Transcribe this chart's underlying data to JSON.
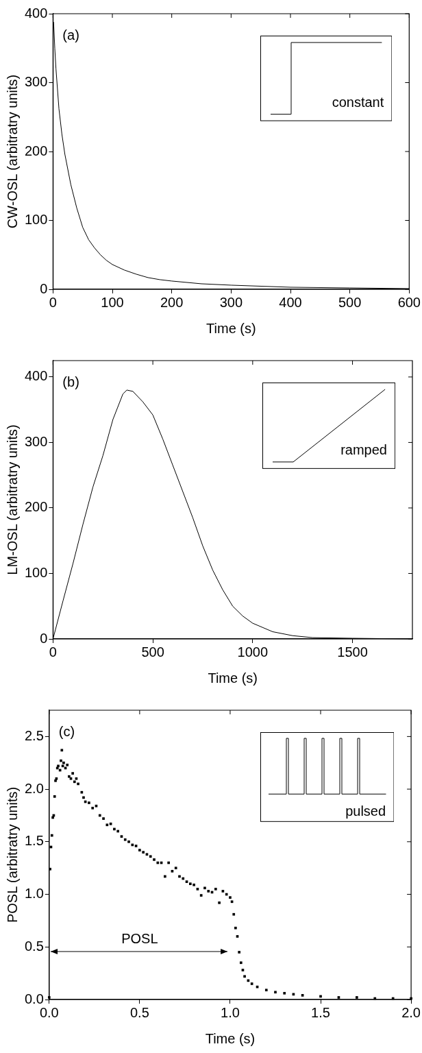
{
  "chart_data": [
    {
      "type": "line",
      "xlabel": "Time (s)",
      "ylabel": "CW-OSL (arbitratry units)",
      "annotations": [
        "(a)",
        "constant"
      ],
      "xlim": [
        0,
        600
      ],
      "xticks": [
        0,
        100,
        200,
        300,
        400,
        500,
        600
      ],
      "ylim": [
        0,
        400
      ],
      "yticks": [
        0,
        100,
        200,
        300,
        400
      ],
      "grid": false,
      "legend": false,
      "marker": "none",
      "color": "#000000",
      "x": [
        1,
        3,
        5,
        10,
        15,
        20,
        30,
        40,
        50,
        60,
        70,
        80,
        90,
        100,
        120,
        140,
        160,
        180,
        200,
        250,
        300,
        400,
        500,
        600
      ],
      "values": [
        388,
        350,
        320,
        262,
        225,
        196,
        152,
        118,
        90,
        72,
        60,
        50,
        42,
        36,
        28,
        22,
        17,
        14,
        12,
        8,
        6,
        3,
        2,
        1
      ]
    },
    {
      "type": "line",
      "xlabel": "Time (s)",
      "ylabel": "LM-OSL (arbitratry units)",
      "annotations": [
        "(b)",
        "ramped"
      ],
      "xlim": [
        0,
        1800
      ],
      "xticks": [
        0,
        500,
        1000,
        1500
      ],
      "ylim": [
        0,
        425
      ],
      "yticks": [
        0,
        100,
        200,
        300,
        400
      ],
      "grid": false,
      "legend": false,
      "marker": "none",
      "color": "#000000",
      "x": [
        0,
        50,
        100,
        150,
        200,
        250,
        300,
        350,
        370,
        400,
        450,
        500,
        550,
        600,
        650,
        700,
        750,
        800,
        850,
        900,
        950,
        1000,
        1100,
        1200,
        1300,
        1500,
        1800
      ],
      "values": [
        0,
        58,
        115,
        175,
        232,
        280,
        335,
        374,
        380,
        378,
        362,
        342,
        305,
        265,
        225,
        185,
        142,
        105,
        75,
        50,
        35,
        24,
        11,
        5,
        2,
        1,
        0
      ]
    },
    {
      "type": "scatter",
      "xlabel": "Time (s)",
      "ylabel": "POSL (arbitratry units)",
      "annotations": [
        "(c)",
        "pulsed",
        "POSL"
      ],
      "xlim": [
        0,
        2
      ],
      "xticks": [
        {
          "value": 0,
          "label": "0.0"
        },
        0.5,
        {
          "value": 1,
          "label": "1.0"
        },
        1.5,
        {
          "value": 2,
          "label": "2.0"
        }
      ],
      "ylim": [
        0,
        2.75
      ],
      "yticks": [
        {
          "value": 0,
          "label": "0.0"
        },
        0.5,
        {
          "value": 1,
          "label": "1.0"
        },
        1.5,
        {
          "value": 2,
          "label": "2.0"
        },
        2.5
      ],
      "grid": false,
      "legend": false,
      "marker": "square",
      "color": "#000000",
      "x": [
        0,
        0.005,
        0.01,
        0.015,
        0.02,
        0.025,
        0.03,
        0.035,
        0.04,
        0.045,
        0.05,
        0.06,
        0.065,
        0.07,
        0.075,
        0.08,
        0.09,
        0.1,
        0.11,
        0.12,
        0.13,
        0.14,
        0.15,
        0.16,
        0.18,
        0.19,
        0.2,
        0.22,
        0.24,
        0.26,
        0.28,
        0.3,
        0.32,
        0.34,
        0.36,
        0.38,
        0.4,
        0.42,
        0.44,
        0.46,
        0.48,
        0.5,
        0.52,
        0.54,
        0.56,
        0.58,
        0.6,
        0.62,
        0.64,
        0.66,
        0.68,
        0.7,
        0.72,
        0.74,
        0.76,
        0.78,
        0.8,
        0.82,
        0.84,
        0.86,
        0.88,
        0.9,
        0.92,
        0.94,
        0.96,
        0.98,
        1.0,
        1.01,
        1.02,
        1.03,
        1.04,
        1.05,
        1.06,
        1.07,
        1.08,
        1.1,
        1.12,
        1.15,
        1.2,
        1.25,
        1.3,
        1.35,
        1.4,
        1.5,
        1.6,
        1.7,
        1.8,
        1.9,
        2.0
      ],
      "values": [
        0.02,
        1.24,
        1.45,
        1.56,
        1.73,
        1.75,
        1.93,
        2.08,
        2.1,
        2.2,
        2.22,
        2.18,
        2.27,
        2.37,
        2.22,
        2.25,
        2.2,
        2.23,
        2.12,
        2.1,
        2.15,
        2.07,
        2.1,
        2.05,
        1.97,
        1.92,
        1.88,
        1.87,
        1.82,
        1.84,
        1.75,
        1.72,
        1.66,
        1.67,
        1.62,
        1.6,
        1.55,
        1.52,
        1.5,
        1.47,
        1.46,
        1.42,
        1.4,
        1.38,
        1.36,
        1.33,
        1.3,
        1.3,
        1.17,
        1.3,
        1.22,
        1.25,
        1.17,
        1.15,
        1.12,
        1.1,
        1.09,
        1.05,
        0.99,
        1.06,
        1.03,
        1.02,
        1.05,
        0.92,
        1.03,
        1.0,
        0.97,
        0.93,
        0.81,
        0.68,
        0.6,
        0.45,
        0.35,
        0.28,
        0.22,
        0.18,
        0.15,
        0.12,
        0.09,
        0.07,
        0.06,
        0.05,
        0.04,
        0.03,
        0.02,
        0.02,
        0.01,
        0.01,
        0.01
      ]
    }
  ]
}
